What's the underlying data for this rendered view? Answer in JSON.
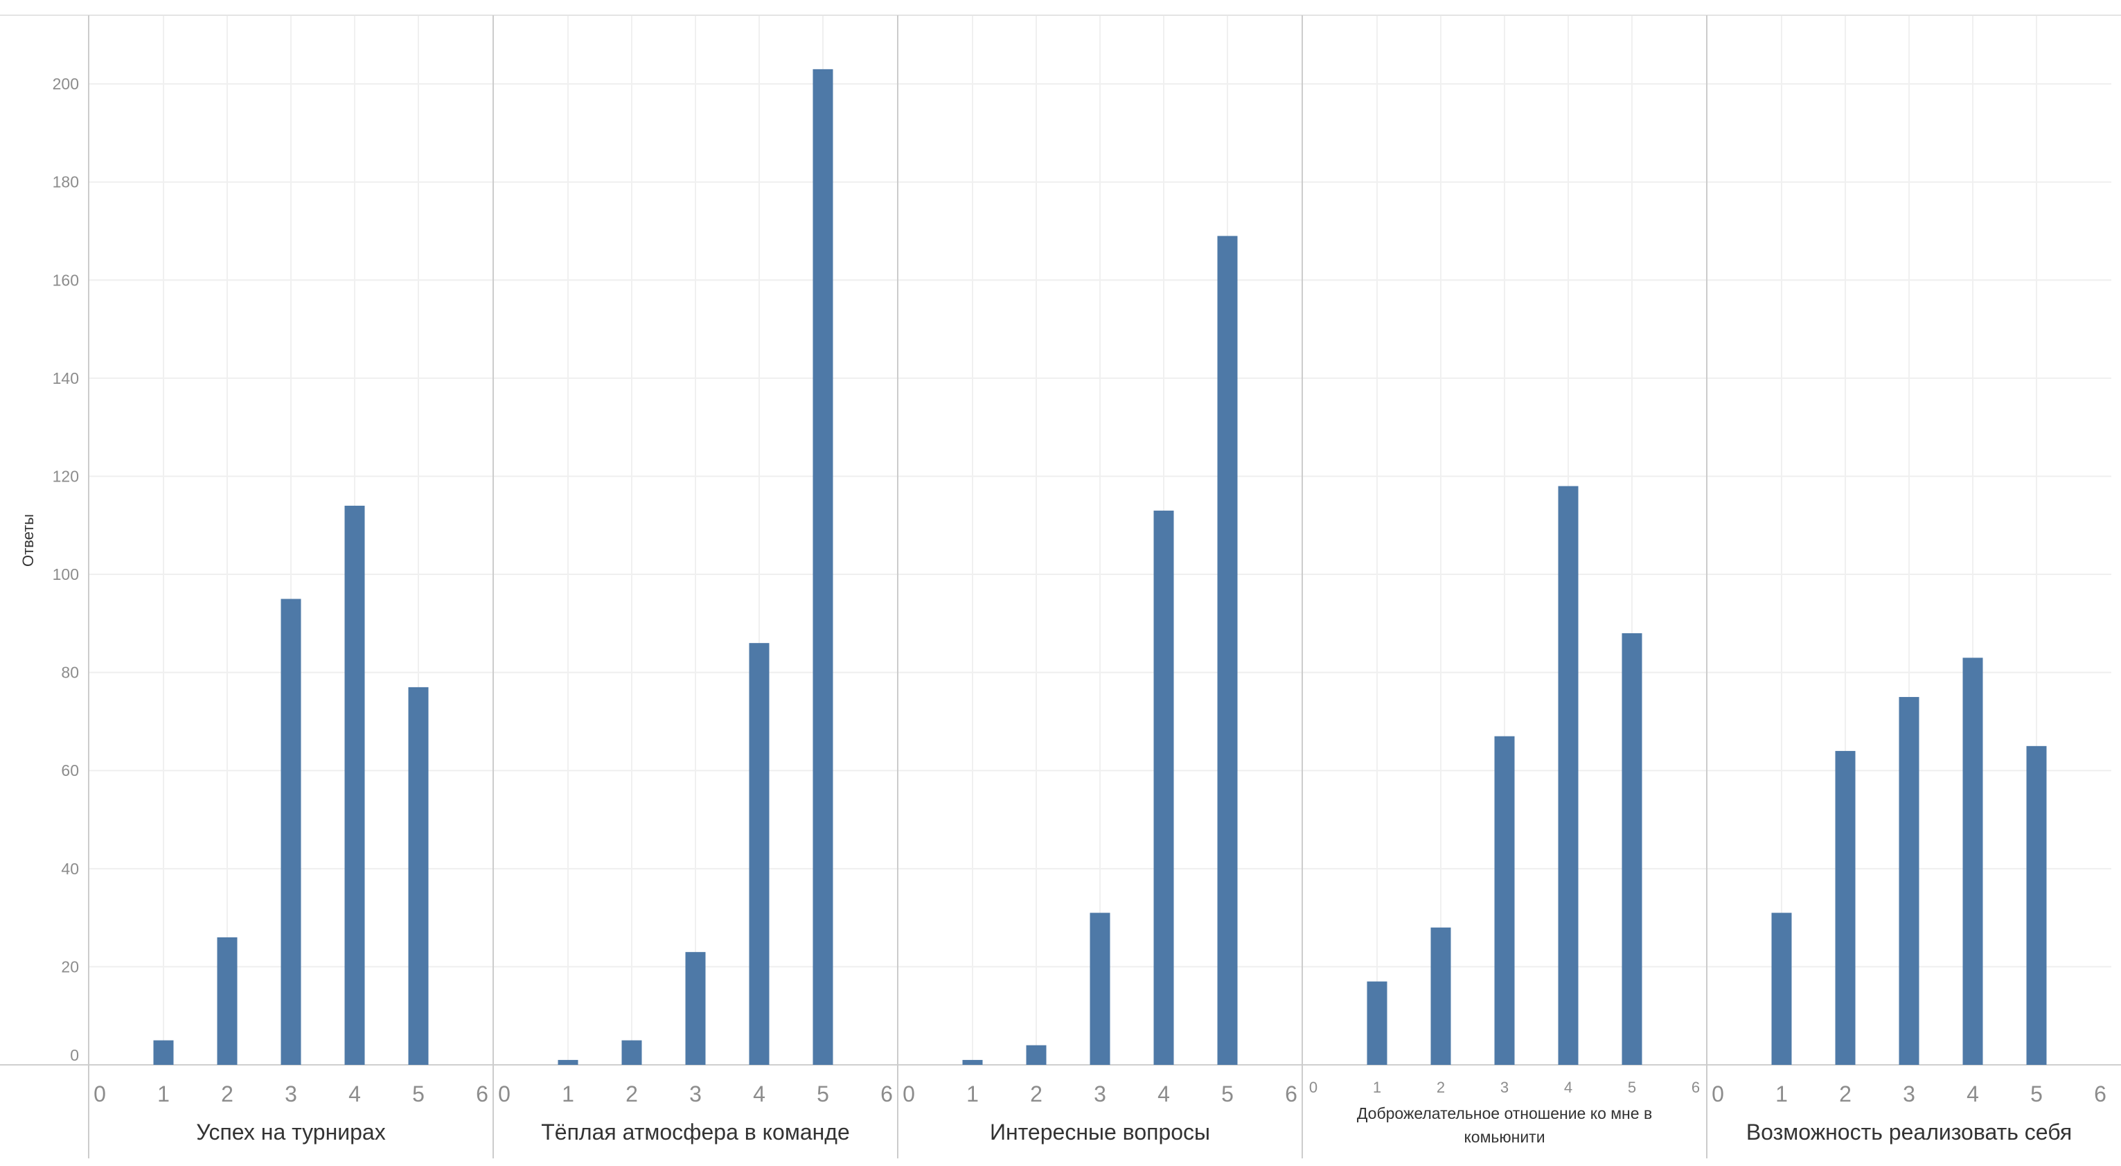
{
  "chart_data": {
    "type": "bar",
    "ylabel": "Ответы",
    "ylim": [
      0,
      214
    ],
    "yticks": [
      0,
      20,
      40,
      60,
      80,
      100,
      120,
      140,
      160,
      180,
      200
    ],
    "xticks": [
      0,
      1,
      2,
      3,
      4,
      5,
      6
    ],
    "xlim": [
      0,
      6
    ],
    "categories": [
      1,
      2,
      3,
      4,
      5
    ],
    "grid": true,
    "bar_color": "#4e79a7",
    "panels": [
      {
        "label": "Успех на турнирах",
        "values": [
          5,
          26,
          95,
          114,
          77
        ]
      },
      {
        "label": "Тёплая атмосфера в команде",
        "values": [
          1,
          5,
          23,
          86,
          203
        ]
      },
      {
        "label": "Интересные вопросы",
        "values": [
          1,
          4,
          31,
          113,
          169
        ]
      },
      {
        "label_lines": [
          "Доброжелательное отношение ко мне в",
          "комьюнити"
        ],
        "values": [
          17,
          28,
          67,
          118,
          88
        ]
      },
      {
        "label": "Возможность реализовать себя",
        "values": [
          31,
          64,
          75,
          83,
          65
        ]
      }
    ]
  }
}
